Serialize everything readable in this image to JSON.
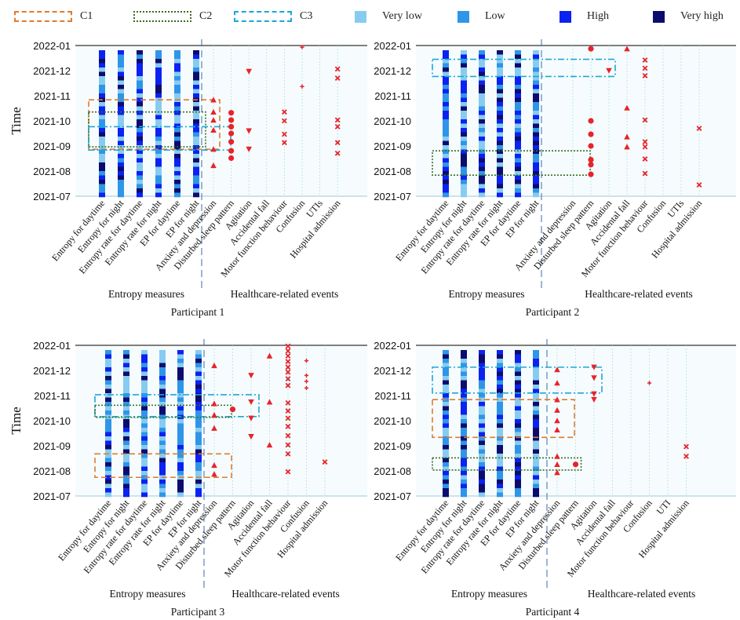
{
  "legend": {
    "boxes": [
      {
        "label": "C1",
        "color": "#e07a2e",
        "style": "dashed"
      },
      {
        "label": "C2",
        "color": "#3a6b1f",
        "style": "dotted"
      },
      {
        "label": "C3",
        "color": "#1aa7d8",
        "style": "dashdot"
      }
    ],
    "levels": [
      {
        "label": "Very low",
        "color": "#87ccf0"
      },
      {
        "label": "Low",
        "color": "#2f95e8"
      },
      {
        "label": "High",
        "color": "#0b22f0"
      },
      {
        "label": "Very high",
        "color": "#0c0c6e"
      }
    ]
  },
  "chart_data": [
    {
      "type": "event-timeline",
      "title": "Participant 1",
      "ylabel": "Time",
      "group_labels": [
        "Entropy measures",
        "Healthcare-related events"
      ],
      "y_ticks": [
        "2022-01",
        "2021-12",
        "2021-11",
        "2021-10",
        "2021-09",
        "2021-08",
        "2021-07"
      ],
      "entropy_measures": [
        "Entropy for daytime",
        "Entropy for night",
        "Entropy rate for daytime",
        "Entropy rate for night",
        "EP for daytime",
        "EP for night"
      ],
      "events": [
        "Anxiety and depression",
        "Disturbed sleep pattern",
        "Agitation",
        "Accidental fall",
        "Motor function behaviour",
        "Confusion",
        "UTIs",
        "Hospital admission"
      ],
      "markers": [
        {
          "event": "Anxiety and depression",
          "symbol": "triangle-up",
          "dates": [
            "2021-10-27",
            "2021-10-12",
            "2021-10-02",
            "2021-09-20",
            "2021-08-28",
            "2021-08-08"
          ]
        },
        {
          "event": "Disturbed sleep pattern",
          "symbol": "circle",
          "dates": [
            "2021-10-11",
            "2021-10-02",
            "2021-09-24",
            "2021-09-16",
            "2021-09-06",
            "2021-08-26",
            "2021-08-17"
          ]
        },
        {
          "event": "Agitation",
          "symbol": "triangle-down",
          "dates": [
            "2021-11-30",
            "2021-09-19",
            "2021-08-28"
          ]
        },
        {
          "event": "Motor function behaviour",
          "symbol": "x",
          "dates": [
            "2021-10-12",
            "2021-10-01",
            "2021-09-15",
            "2021-09-05"
          ]
        },
        {
          "event": "Confusion",
          "symbol": "plus",
          "dates": [
            "2021-12-30",
            "2021-11-12"
          ]
        },
        {
          "event": "Hospital admission",
          "symbol": "x",
          "dates": [
            "2021-12-03",
            "2021-11-22",
            "2021-10-02",
            "2021-09-24",
            "2021-09-05",
            "2021-08-23"
          ]
        }
      ],
      "clusters": [
        {
          "label": "C1",
          "from": "2021-08-28",
          "to": "2021-10-27",
          "span": "entropy-and-events"
        },
        {
          "label": "C2",
          "from": "2021-08-31",
          "to": "2021-10-12",
          "span": "entropy"
        },
        {
          "label": "C3",
          "from": "2021-08-27",
          "to": "2021-09-24",
          "span": "entropy-and-events"
        }
      ],
      "footer": "Participant 1"
    },
    {
      "type": "event-timeline",
      "title": "Participant 2",
      "ylabel": "",
      "group_labels": [
        "Entropy measures",
        "Healthcare-related events"
      ],
      "y_ticks": [
        "2022-01",
        "2021-12",
        "2021-11",
        "2021-10",
        "2021-09",
        "2021-08",
        "2021-07"
      ],
      "entropy_measures": [
        "Entropy for daytime",
        "Entropy for night",
        "Entropy rate for daytime",
        "Entropy rate for night",
        "EP for daytime",
        "EP for night"
      ],
      "events": [
        "Anxiety and depression",
        "Disturbed sleep pattern",
        "Agitation",
        "Accidental fall",
        "Motor function behaviour",
        "Confusion",
        "UTIs",
        "Hospital admission"
      ],
      "markers": [
        {
          "event": "Disturbed sleep pattern",
          "symbol": "circle",
          "dates": [
            "2021-12-28",
            "2021-10-01",
            "2021-09-15",
            "2021-09-01",
            "2021-08-15",
            "2021-08-09",
            "2021-07-28"
          ]
        },
        {
          "event": "Agitation",
          "symbol": "triangle-down",
          "dates": [
            "2021-12-01"
          ]
        },
        {
          "event": "Accidental fall",
          "symbol": "triangle-up",
          "dates": [
            "2021-12-28",
            "2021-10-17",
            "2021-09-12",
            "2021-08-31"
          ]
        },
        {
          "event": "Motor function behaviour",
          "symbol": "x",
          "dates": [
            "2021-12-14",
            "2021-12-04",
            "2021-11-25",
            "2021-10-02",
            "2021-09-06",
            "2021-08-31",
            "2021-08-16",
            "2021-07-29"
          ]
        },
        {
          "event": "Hospital admission",
          "symbol": "x",
          "dates": [
            "2021-09-22",
            "2021-07-15"
          ]
        }
      ],
      "clusters": [
        {
          "label": "C3",
          "from": "2021-11-24",
          "to": "2021-12-15",
          "span": "entropy-and-events"
        },
        {
          "label": "C2",
          "from": "2021-07-27",
          "to": "2021-08-26",
          "span": "entropy-and-events"
        }
      ],
      "footer": "Participant 2"
    },
    {
      "type": "event-timeline",
      "title": "Participant 3",
      "ylabel": "Time",
      "group_labels": [
        "Entropy measures",
        "Healthcare-related events"
      ],
      "y_ticks": [
        "2022-01",
        "2021-12",
        "2021-11",
        "2021-10",
        "2021-09",
        "2021-08",
        "2021-07"
      ],
      "entropy_measures": [
        "Entropy for daytime",
        "Entropy for night",
        "Entropy rate for daytime",
        "Entropy rate for night",
        "EP for daytime",
        "EP for night"
      ],
      "events": [
        "Anxiety and depression",
        "Disturbed sleep pattern",
        "Agitation",
        "Accidental fall",
        "Motor function behaviour",
        "Confusion",
        "Hospital admission"
      ],
      "markers": [
        {
          "event": "Anxiety and depression",
          "symbol": "triangle-up",
          "dates": [
            "2021-12-07",
            "2021-10-22",
            "2021-10-08",
            "2021-09-22",
            "2021-08-08",
            "2021-07-28"
          ]
        },
        {
          "event": "Disturbed sleep pattern",
          "symbol": "circle",
          "dates": [
            "2021-10-15"
          ]
        },
        {
          "event": "Agitation",
          "symbol": "triangle-down",
          "dates": [
            "2021-11-25",
            "2021-10-24",
            "2021-10-04",
            "2021-09-12"
          ]
        },
        {
          "event": "Accidental fall",
          "symbol": "triangle-up",
          "dates": [
            "2021-12-19",
            "2021-10-24",
            "2021-09-02"
          ]
        },
        {
          "event": "Motor function behaviour",
          "symbol": "x",
          "dates": [
            "2021-12-31",
            "2021-12-25",
            "2021-12-19",
            "2021-12-12",
            "2021-12-05",
            "2021-11-29",
            "2021-11-21",
            "2021-11-13",
            "2021-10-23",
            "2021-10-13",
            "2021-10-04",
            "2021-09-24",
            "2021-09-13",
            "2021-09-02",
            "2021-08-22",
            "2021-07-31"
          ]
        },
        {
          "event": "Confusion",
          "symbol": "plus",
          "dates": [
            "2021-12-13",
            "2021-11-25",
            "2021-11-18",
            "2021-11-10"
          ]
        },
        {
          "event": "Hospital admission",
          "symbol": "x",
          "dates": [
            "2021-08-12"
          ]
        }
      ],
      "clusters": [
        {
          "label": "C3",
          "from": "2021-10-06",
          "to": "2021-11-02",
          "span": "entropy-and-events"
        },
        {
          "label": "C2",
          "from": "2021-10-05",
          "to": "2021-10-20",
          "span": "entropy-and-events"
        },
        {
          "label": "C1",
          "from": "2021-07-24",
          "to": "2021-08-22",
          "span": "entropy-and-events"
        }
      ],
      "footer": "Participant 3"
    },
    {
      "type": "event-timeline",
      "title": "Participant 4",
      "ylabel": "",
      "group_labels": [
        "Entropy measures",
        "Healthcare-related events"
      ],
      "y_ticks": [
        "2022-01",
        "2021-12",
        "2021-11",
        "2021-10",
        "2021-09",
        "2021-08",
        "2021-07"
      ],
      "entropy_measures": [
        "Entropy for daytime",
        "Entropy for night",
        "Entropy rate for daytime",
        "Entropy rate for night",
        "EP for daytime",
        "EP for night"
      ],
      "events": [
        "Anxiety and depression",
        "Disturbed sleep pattern",
        "Agitation",
        "Accidental fall",
        "Motor function behaviour",
        "Confusion",
        "UTI",
        "Hospital admission"
      ],
      "markers": [
        {
          "event": "Anxiety and depression",
          "symbol": "triangle-up",
          "dates": [
            "2021-12-02",
            "2021-11-16",
            "2021-10-27",
            "2021-10-14",
            "2021-10-01",
            "2021-09-20",
            "2021-08-19",
            "2021-08-09",
            "2021-07-30"
          ]
        },
        {
          "event": "Disturbed sleep pattern",
          "symbol": "circle",
          "dates": [
            "2021-08-09"
          ]
        },
        {
          "event": "Agitation",
          "symbol": "triangle-down",
          "dates": [
            "2021-12-05",
            "2021-11-22",
            "2021-11-03",
            "2021-10-27"
          ]
        },
        {
          "event": "Confusion",
          "symbol": "plus",
          "dates": [
            "2021-11-16"
          ]
        },
        {
          "event": "Hospital admission",
          "symbol": "x",
          "dates": [
            "2021-08-31",
            "2021-08-19"
          ]
        }
      ],
      "clusters": [
        {
          "label": "C3",
          "from": "2021-11-04",
          "to": "2021-12-05",
          "span": "entropy-and-events"
        },
        {
          "label": "C1",
          "from": "2021-09-11",
          "to": "2021-10-27",
          "span": "entropy-and-events"
        },
        {
          "label": "C2",
          "from": "2021-08-02",
          "to": "2021-08-17",
          "span": "entropy-and-events"
        }
      ],
      "footer": "Participant 4"
    }
  ]
}
